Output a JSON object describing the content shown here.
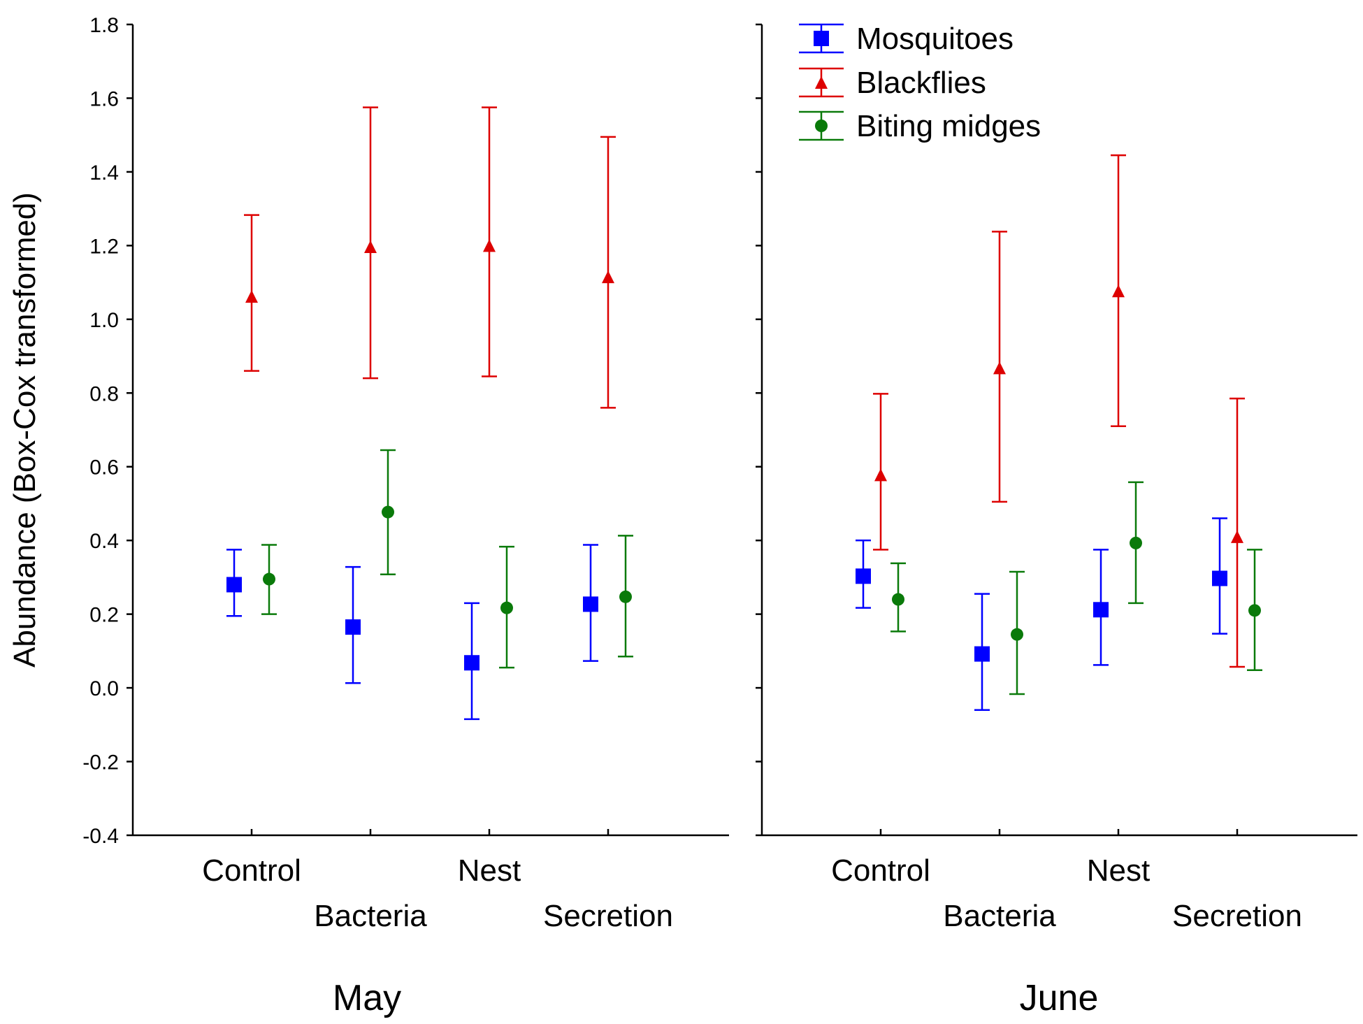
{
  "chart_data": {
    "type": "scatter",
    "subtype": "error-bar",
    "ylabel": "Abundance (Box-Cox transformed)",
    "xlabel": "",
    "ylim": [
      -0.4,
      1.8
    ],
    "y_ticks": [
      "-0.4",
      "-0.2",
      "0.0",
      "0.2",
      "0.4",
      "0.6",
      "0.8",
      "1.0",
      "1.2",
      "1.4",
      "1.6",
      "1.8"
    ],
    "categories": [
      "Control",
      "Bacteria",
      "Nest",
      "Secretion"
    ],
    "legend_position": "top-right",
    "panels": [
      {
        "name": "May",
        "series": [
          {
            "name": "Mosquitoes",
            "color": "#0000ff",
            "marker": "square",
            "values": [
              0.28,
              0.165,
              0.068,
              0.227
            ],
            "lower": [
              0.195,
              0.013,
              -0.085,
              0.073
            ],
            "upper": [
              0.375,
              0.328,
              0.23,
              0.388
            ]
          },
          {
            "name": "Blackflies",
            "color": "#dd0000",
            "marker": "triangle",
            "values": [
              1.062,
              1.197,
              1.2,
              1.115
            ],
            "lower": [
              0.86,
              0.84,
              0.845,
              0.76
            ],
            "upper": [
              1.283,
              1.575,
              1.575,
              1.495
            ]
          },
          {
            "name": "Biting midges",
            "color": "#0a7a0a",
            "marker": "circle",
            "values": [
              0.295,
              0.477,
              0.217,
              0.247
            ],
            "lower": [
              0.2,
              0.308,
              0.055,
              0.085
            ],
            "upper": [
              0.388,
              0.645,
              0.383,
              0.413
            ]
          }
        ]
      },
      {
        "name": "June",
        "series": [
          {
            "name": "Mosquitoes",
            "color": "#0000ff",
            "marker": "square",
            "values": [
              0.303,
              0.092,
              0.212,
              0.297
            ],
            "lower": [
              0.217,
              -0.06,
              0.062,
              0.147
            ],
            "upper": [
              0.4,
              0.255,
              0.375,
              0.46
            ]
          },
          {
            "name": "Blackflies",
            "color": "#dd0000",
            "marker": "triangle",
            "values": [
              0.578,
              0.868,
              1.077,
              0.41
            ],
            "lower": [
              0.375,
              0.505,
              0.71,
              0.057
            ],
            "upper": [
              0.798,
              1.238,
              1.445,
              0.785
            ]
          },
          {
            "name": "Biting midges",
            "color": "#0a7a0a",
            "marker": "circle",
            "values": [
              0.24,
              0.145,
              0.393,
              0.21
            ],
            "lower": [
              0.153,
              -0.017,
              0.23,
              0.048
            ],
            "upper": [
              0.338,
              0.315,
              0.558,
              0.375
            ]
          }
        ]
      }
    ],
    "legend": [
      "Mosquitoes",
      "Blackflies",
      "Biting midges"
    ]
  }
}
